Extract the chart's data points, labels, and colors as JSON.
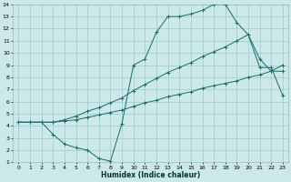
{
  "xlabel": "Humidex (Indice chaleur)",
  "ylabel": "",
  "bg_color": "#cce8e8",
  "grid_color": "#99cccc",
  "line_color": "#1a6b6b",
  "xlim": [
    -0.5,
    23.5
  ],
  "ylim": [
    1,
    14
  ],
  "xticks": [
    0,
    1,
    2,
    3,
    4,
    5,
    6,
    7,
    8,
    9,
    10,
    11,
    12,
    13,
    14,
    15,
    16,
    17,
    18,
    19,
    20,
    21,
    22,
    23
  ],
  "yticks": [
    1,
    2,
    3,
    4,
    5,
    6,
    7,
    8,
    9,
    10,
    11,
    12,
    13,
    14
  ],
  "line1_x": [
    0,
    1,
    2,
    3,
    4,
    5,
    6,
    7,
    8,
    9,
    10,
    11,
    12,
    13,
    14,
    15,
    16,
    17,
    18,
    19,
    20,
    21,
    22,
    23
  ],
  "line1_y": [
    4.3,
    4.3,
    4.3,
    3.3,
    2.5,
    2.2,
    2.0,
    1.3,
    1.1,
    4.2,
    9.0,
    9.5,
    11.7,
    13.0,
    13.0,
    13.2,
    13.5,
    14.0,
    14.0,
    12.5,
    11.5,
    8.8,
    8.8,
    6.5
  ],
  "line2_x": [
    0,
    1,
    2,
    3,
    4,
    5,
    6,
    7,
    8,
    9,
    10,
    11,
    12,
    13,
    14,
    15,
    16,
    17,
    18,
    19,
    20,
    21,
    22,
    23
  ],
  "line2_y": [
    4.3,
    4.3,
    4.3,
    4.3,
    4.5,
    4.8,
    5.2,
    5.5,
    5.9,
    6.3,
    6.9,
    7.4,
    7.9,
    8.4,
    8.8,
    9.2,
    9.7,
    10.1,
    10.5,
    11.0,
    11.5,
    9.5,
    8.5,
    8.5
  ],
  "line3_x": [
    0,
    1,
    2,
    3,
    4,
    5,
    6,
    7,
    8,
    9,
    10,
    11,
    12,
    13,
    14,
    15,
    16,
    17,
    18,
    19,
    20,
    21,
    22,
    23
  ],
  "line3_y": [
    4.3,
    4.3,
    4.3,
    4.3,
    4.4,
    4.5,
    4.7,
    4.9,
    5.1,
    5.3,
    5.6,
    5.9,
    6.1,
    6.4,
    6.6,
    6.8,
    7.1,
    7.3,
    7.5,
    7.7,
    8.0,
    8.2,
    8.5,
    9.0
  ]
}
